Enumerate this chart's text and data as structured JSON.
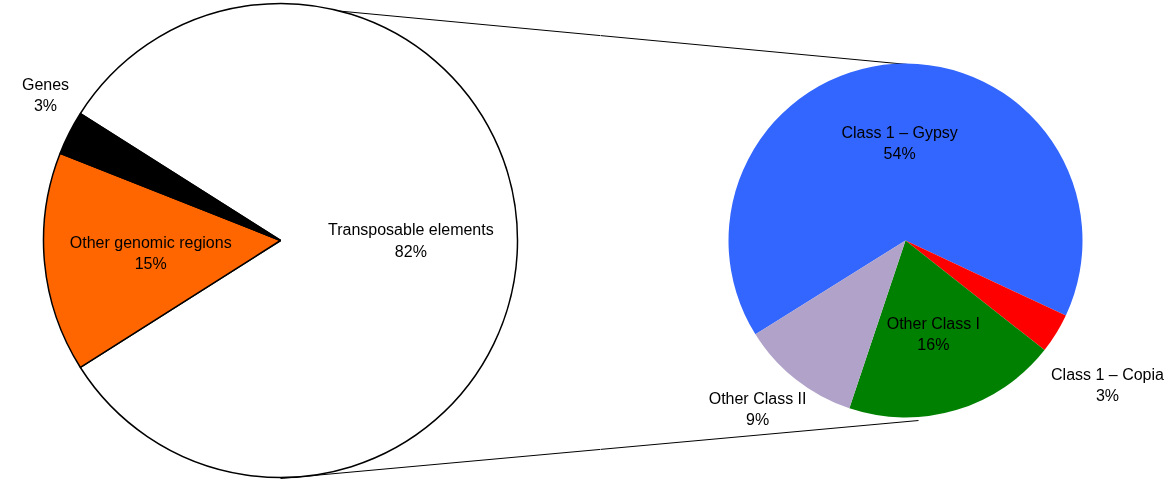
{
  "chart_data": [
    {
      "type": "pie",
      "categories": [
        "Transposable elements",
        "Other genomic regions",
        "Genes"
      ],
      "values": [
        82,
        15,
        3
      ],
      "value_labels": [
        "82%",
        "15%",
        "3%"
      ],
      "colors": [
        "#ffffff",
        "#ff6600",
        "#000000"
      ]
    },
    {
      "type": "pie",
      "categories": [
        "Class 1 – Gypsy",
        "Class 1 – Copia",
        "Other Class I",
        "Other Class II"
      ],
      "values": [
        54,
        3,
        16,
        9
      ],
      "value_labels": [
        "54%",
        "3%",
        "16%",
        "9%"
      ],
      "colors": [
        "#3366ff",
        "#ff0000",
        "#008000",
        "#b1a2c9"
      ]
    }
  ]
}
